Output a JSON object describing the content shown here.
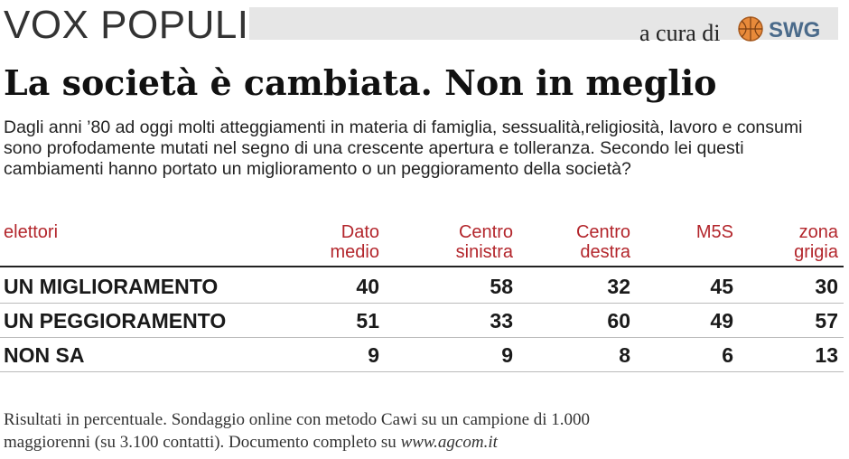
{
  "header": {
    "section_title": "VOX POPULI",
    "curator_label": "a cura di",
    "logo_text": "SWG",
    "logo_icon": "swg-ball-logo"
  },
  "headline": "La società è cambiata. Non in meglio",
  "question": "Dagli anni ’80 ad oggi molti atteggiamenti in materia di famiglia, sessualità,religiosità, lavoro e consumi sono profodamente mutati nel segno di una crescente apertura e tolleranza. Secondo lei questi cambiamenti hanno portato un miglioramento o un peggioramento della società?",
  "colors": {
    "accent": "#b3262c",
    "header_bar": "#e6e6e6"
  },
  "chart_data": {
    "type": "table",
    "row_header": "elettori",
    "columns": [
      {
        "line1": "Dato",
        "line2": "medio"
      },
      {
        "line1": "Centro",
        "line2": "sinistra"
      },
      {
        "line1": "Centro",
        "line2": "destra"
      },
      {
        "line1": "M5S",
        "line2": ""
      },
      {
        "line1": "zona",
        "line2": "grigia"
      }
    ],
    "rows": [
      {
        "label": "UN MIGLIORAMENTO",
        "values": [
          "40",
          "58",
          "32",
          "45",
          "30"
        ]
      },
      {
        "label": "UN PEGGIORAMENTO",
        "values": [
          "51",
          "33",
          "60",
          "49",
          "57"
        ]
      },
      {
        "label": "NON SA",
        "values": [
          "9",
          "9",
          "8",
          "6",
          "13"
        ]
      }
    ]
  },
  "footer": {
    "line1": "Risultati in percentuale. Sondaggio online con metodo Cawi su un campione di 1.000",
    "line2": "maggiorenni (su 3.100 contatti). Documento completo su ",
    "link": "www.agcom.it"
  }
}
